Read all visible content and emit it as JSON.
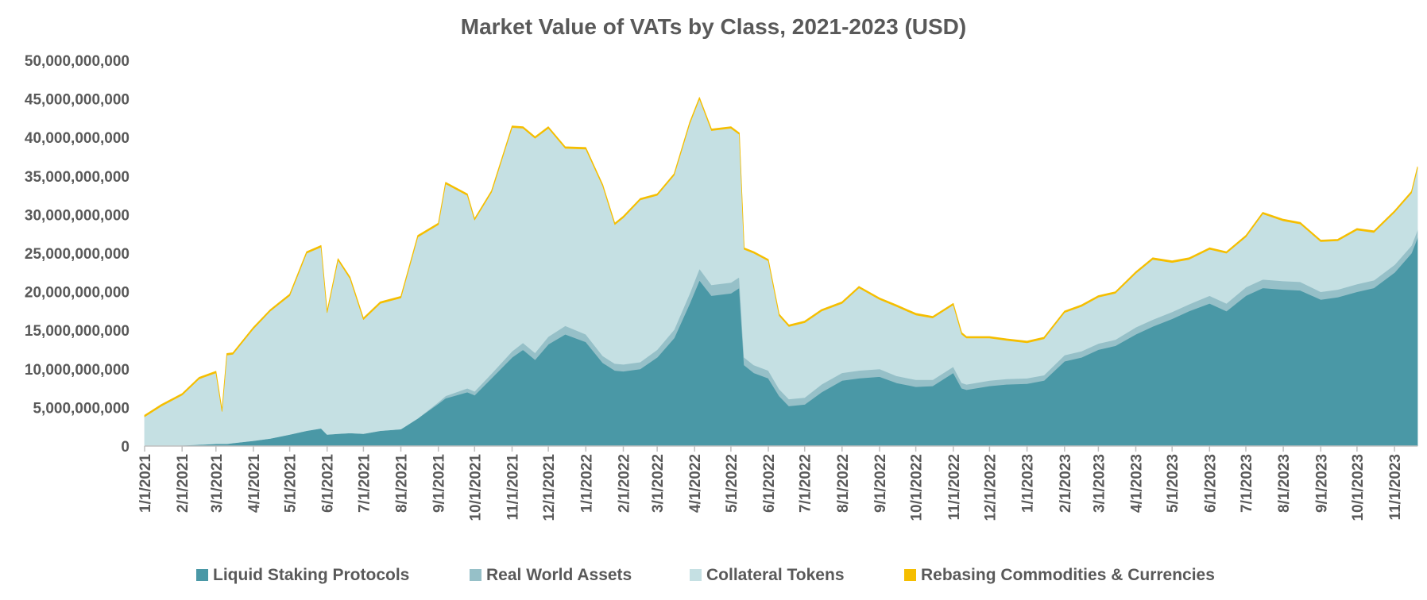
{
  "chart_data": {
    "type": "area",
    "stacked": true,
    "title": "Market Value of VATs by Class, 2021-2023 (USD)",
    "xlabel": "",
    "ylabel": "",
    "ylim": [
      0,
      50000000000
    ],
    "y_ticks": [
      "0",
      "5,000,000,000",
      "10,000,000,000",
      "15,000,000,000",
      "20,000,000,000",
      "25,000,000,000",
      "30,000,000,000",
      "35,000,000,000",
      "40,000,000,000",
      "45,000,000,000",
      "50,000,000,000"
    ],
    "x_ticks": [
      "1/1/2021",
      "2/1/2021",
      "3/1/2021",
      "4/1/2021",
      "5/1/2021",
      "6/1/2021",
      "7/1/2021",
      "8/1/2021",
      "9/1/2021",
      "10/1/2021",
      "11/1/2021",
      "12/1/2021",
      "1/1/2022",
      "2/1/2022",
      "3/1/2022",
      "4/1/2022",
      "5/1/2022",
      "6/1/2022",
      "7/1/2022",
      "8/1/2022",
      "9/1/2022",
      "10/1/2022",
      "11/1/2022",
      "12/1/2022",
      "1/1/2023",
      "2/1/2023",
      "3/1/2023",
      "4/1/2023",
      "5/1/2023",
      "6/1/2023",
      "7/1/2023",
      "8/1/2023",
      "9/1/2023",
      "10/1/2023",
      "11/1/2023"
    ],
    "grid": false,
    "legend_position": "bottom",
    "x": [
      "2021-01-01",
      "2021-01-15",
      "2021-02-01",
      "2021-02-15",
      "2021-03-01",
      "2021-03-06",
      "2021-03-10",
      "2021-03-15",
      "2021-04-01",
      "2021-04-15",
      "2021-05-01",
      "2021-05-15",
      "2021-05-27",
      "2021-06-01",
      "2021-06-10",
      "2021-06-20",
      "2021-07-01",
      "2021-07-15",
      "2021-08-01",
      "2021-08-15",
      "2021-09-01",
      "2021-09-07",
      "2021-09-25",
      "2021-10-01",
      "2021-10-15",
      "2021-11-01",
      "2021-11-10",
      "2021-11-20",
      "2021-12-01",
      "2021-12-15",
      "2022-01-01",
      "2022-01-15",
      "2022-01-25",
      "2022-02-01",
      "2022-02-15",
      "2022-03-01",
      "2022-03-15",
      "2022-03-28",
      "2022-04-05",
      "2022-04-15",
      "2022-05-01",
      "2022-05-08",
      "2022-05-12",
      "2022-05-20",
      "2022-06-01",
      "2022-06-10",
      "2022-06-18",
      "2022-07-01",
      "2022-07-15",
      "2022-08-01",
      "2022-08-15",
      "2022-09-01",
      "2022-09-15",
      "2022-10-01",
      "2022-10-15",
      "2022-11-01",
      "2022-11-08",
      "2022-11-12",
      "2022-12-01",
      "2022-12-15",
      "2023-01-01",
      "2023-01-15",
      "2023-02-01",
      "2023-02-15",
      "2023-03-01",
      "2023-03-15",
      "2023-04-01",
      "2023-04-15",
      "2023-05-01",
      "2023-05-15",
      "2023-06-01",
      "2023-06-15",
      "2023-07-01",
      "2023-07-15",
      "2023-08-01",
      "2023-08-15",
      "2023-09-01",
      "2023-09-15",
      "2023-10-01",
      "2023-10-15",
      "2023-11-01",
      "2023-11-15",
      "2023-11-20"
    ],
    "series": [
      {
        "name": "Liquid Staking Protocols",
        "color": "#4a98a6",
        "values": [
          0,
          0,
          100000000,
          200000000,
          300000000,
          300000000,
          300000000,
          400000000,
          700000000,
          1000000000,
          1500000000,
          2000000000,
          2300000000,
          1500000000,
          1600000000,
          1700000000,
          1600000000,
          2000000000,
          2200000000,
          3600000000,
          5500000000,
          6200000000,
          7000000000,
          6600000000,
          8800000000,
          11500000000,
          12500000000,
          11200000000,
          13200000000,
          14500000000,
          13500000000,
          10800000000,
          9800000000,
          9700000000,
          10000000000,
          11500000000,
          14000000000,
          18500000000,
          21500000000,
          19500000000,
          19800000000,
          20500000000,
          10500000000,
          9500000000,
          8800000000,
          6500000000,
          5200000000,
          5400000000,
          7000000000,
          8500000000,
          8800000000,
          9000000000,
          8200000000,
          7700000000,
          7800000000,
          9500000000,
          7500000000,
          7300000000,
          7800000000,
          8000000000,
          8100000000,
          8500000000,
          11000000000,
          11500000000,
          12500000000,
          13000000000,
          14500000000,
          15500000000,
          16500000000,
          17500000000,
          18500000000,
          17500000000,
          19500000000,
          20500000000,
          20300000000,
          20200000000,
          19000000000,
          19300000000,
          20000000000,
          20500000000,
          22500000000,
          25000000000,
          27000000000
        ]
      },
      {
        "name": "Real World Assets",
        "color": "#96c0c8",
        "values": [
          0,
          0,
          0,
          0,
          0,
          0,
          0,
          0,
          0,
          0,
          0,
          0,
          0,
          0,
          0,
          0,
          0,
          0,
          0,
          0,
          200000000,
          300000000,
          500000000,
          500000000,
          600000000,
          800000000,
          900000000,
          900000000,
          1000000000,
          1100000000,
          1000000000,
          900000000,
          900000000,
          900000000,
          900000000,
          1000000000,
          1100000000,
          1300000000,
          1500000000,
          1400000000,
          1400000000,
          1400000000,
          1000000000,
          1000000000,
          1000000000,
          900000000,
          900000000,
          900000000,
          1000000000,
          1000000000,
          1000000000,
          1000000000,
          900000000,
          900000000,
          800000000,
          800000000,
          700000000,
          700000000,
          700000000,
          700000000,
          700000000,
          700000000,
          800000000,
          800000000,
          800000000,
          800000000,
          900000000,
          900000000,
          900000000,
          900000000,
          1000000000,
          1000000000,
          1100000000,
          1100000000,
          1100000000,
          1100000000,
          1000000000,
          1000000000,
          1000000000,
          1000000000,
          1000000000,
          1000000000,
          1000000000
        ]
      },
      {
        "name": "Collateral Tokens",
        "color": "#c5e0e3",
        "values": [
          3800000000,
          5200000000,
          6500000000,
          8500000000,
          9200000000,
          4200000000,
          11500000000,
          11500000000,
          14500000000,
          16500000000,
          18000000000,
          23000000000,
          23500000000,
          15800000000,
          22500000000,
          20000000000,
          14800000000,
          16500000000,
          17000000000,
          23500000000,
          23000000000,
          27500000000,
          25000000000,
          22200000000,
          23500000000,
          29000000000,
          27800000000,
          27800000000,
          27000000000,
          23000000000,
          24000000000,
          22000000000,
          18000000000,
          19000000000,
          21000000000,
          20000000000,
          20000000000,
          22000000000,
          22000000000,
          20000000000,
          20000000000,
          18500000000,
          14000000000,
          14500000000,
          14200000000,
          9500000000,
          9400000000,
          9700000000,
          9500000000,
          9000000000,
          10700000000,
          9000000000,
          9000000000,
          8400000000,
          8000000000,
          8000000000,
          6300000000,
          6000000000,
          5500000000,
          5000000000,
          4600000000,
          4700000000,
          5500000000,
          5800000000,
          6000000000,
          6000000000,
          7000000000,
          7800000000,
          6400000000,
          5800000000,
          6000000000,
          6500000000,
          6500000000,
          8500000000,
          7800000000,
          7500000000,
          6500000000,
          6300000000,
          7000000000,
          6200000000,
          6800000000,
          6800000000,
          8000000000
        ]
      },
      {
        "name": "Rebasing Commodities & Currencies",
        "color": "#f5be00",
        "values": [
          200000000,
          200000000,
          200000000,
          200000000,
          200000000,
          200000000,
          200000000,
          200000000,
          200000000,
          200000000,
          200000000,
          200000000,
          200000000,
          200000000,
          200000000,
          200000000,
          200000000,
          200000000,
          200000000,
          200000000,
          200000000,
          200000000,
          200000000,
          200000000,
          200000000,
          200000000,
          200000000,
          200000000,
          200000000,
          200000000,
          200000000,
          200000000,
          200000000,
          200000000,
          200000000,
          200000000,
          200000000,
          200000000,
          200000000,
          200000000,
          200000000,
          200000000,
          200000000,
          200000000,
          200000000,
          200000000,
          200000000,
          200000000,
          200000000,
          200000000,
          200000000,
          200000000,
          200000000,
          200000000,
          200000000,
          200000000,
          200000000,
          200000000,
          200000000,
          200000000,
          200000000,
          200000000,
          200000000,
          200000000,
          200000000,
          200000000,
          200000000,
          200000000,
          200000000,
          200000000,
          200000000,
          200000000,
          200000000,
          200000000,
          200000000,
          200000000,
          200000000,
          200000000,
          200000000,
          200000000,
          200000000,
          200000000,
          200000000
        ]
      }
    ]
  }
}
